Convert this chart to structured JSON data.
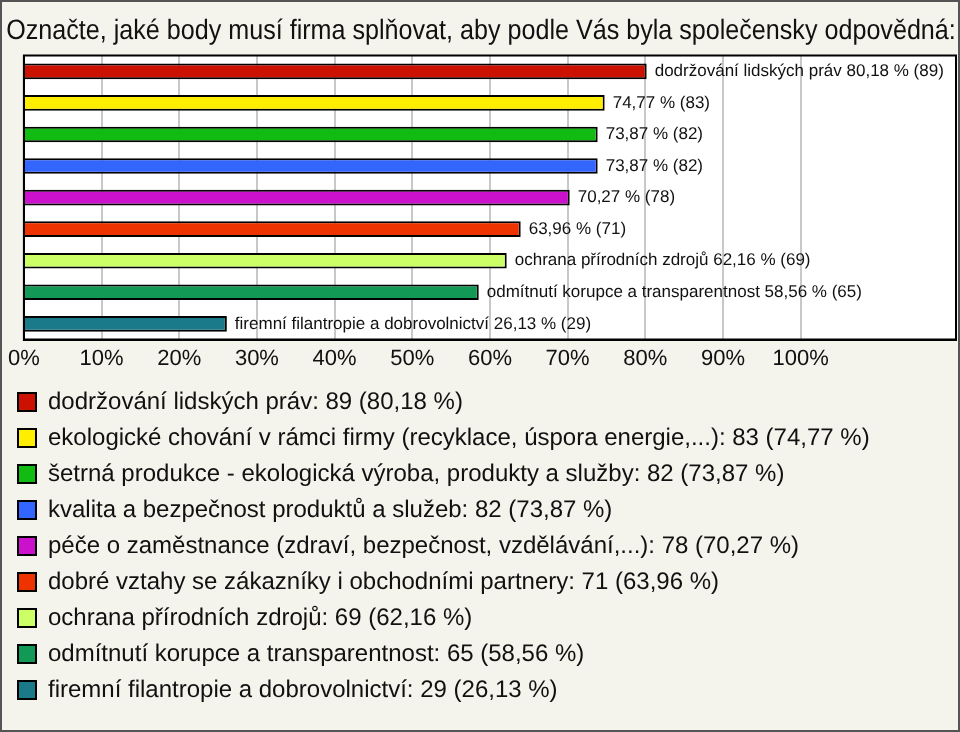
{
  "chart_data": {
    "type": "bar",
    "orientation": "horizontal",
    "title": "Označte, jaké body musí firma splňovat, aby podle Vás byla společensky odpovědná:",
    "categories": [
      null,
      null,
      null,
      null,
      null,
      null,
      null,
      null,
      null
    ],
    "series": [
      {
        "name": "dodržování lidských práv: 89 (80,18 %)",
        "color": "#cc1100",
        "values": [
          80.18,
          null,
          null,
          null,
          null,
          null,
          null,
          null,
          null
        ],
        "value_labels": [
          "dodržování lidských práv 80,18 % (89)",
          null,
          null,
          null,
          null,
          null,
          null,
          null,
          null
        ]
      },
      {
        "name": "ekologické chování v rámci firmy (recyklace, úspora energie,...): 83 (74,77 %)",
        "color": "#ffee00",
        "values": [
          null,
          74.77,
          null,
          null,
          null,
          null,
          null,
          null,
          null
        ],
        "value_labels": [
          null,
          "74,77 % (83)",
          null,
          null,
          null,
          null,
          null,
          null,
          null
        ]
      },
      {
        "name": "šetrná produkce - ekologická výroba, produkty a služby: 82 (73,87 %)",
        "color": "#11bb11",
        "values": [
          null,
          null,
          73.87,
          null,
          null,
          null,
          null,
          null,
          null
        ],
        "value_labels": [
          null,
          null,
          "73,87 % (82)",
          null,
          null,
          null,
          null,
          null,
          null
        ]
      },
      {
        "name": "kvalita a bezpečnost produktů a služeb: 82 (73,87 %)",
        "color": "#3366ff",
        "values": [
          null,
          null,
          null,
          73.87,
          null,
          null,
          null,
          null,
          null
        ],
        "value_labels": [
          null,
          null,
          null,
          "73,87 % (82)",
          null,
          null,
          null,
          null,
          null
        ]
      },
      {
        "name": "péče o zaměstnance (zdraví, bezpečnost, vzdělávání,...): 78 (70,27 %)",
        "color": "#cc11cc",
        "values": [
          null,
          null,
          null,
          null,
          70.27,
          null,
          null,
          null,
          null
        ],
        "value_labels": [
          null,
          null,
          null,
          null,
          "70,27 % (78)",
          null,
          null,
          null,
          null
        ]
      },
      {
        "name": "dobré vztahy se zákazníky i obchodními partnery: 71 (63,96 %)",
        "color": "#ee3300",
        "values": [
          null,
          null,
          null,
          null,
          null,
          63.96,
          null,
          null,
          null
        ],
        "value_labels": [
          null,
          null,
          null,
          null,
          null,
          "63,96 % (71)",
          null,
          null,
          null
        ]
      },
      {
        "name": "ochrana přírodních zdrojů: 69 (62,16 %)",
        "color": "#ccff66",
        "values": [
          null,
          null,
          null,
          null,
          null,
          null,
          62.16,
          null,
          null
        ],
        "value_labels": [
          null,
          null,
          null,
          null,
          null,
          null,
          "ochrana přírodních zdrojů 62,16 % (69)",
          null,
          null
        ]
      },
      {
        "name": "odmítnutí korupce a transparentnost: 65 (58,56 %)",
        "color": "#119955",
        "values": [
          null,
          null,
          null,
          null,
          null,
          null,
          null,
          58.56,
          null
        ],
        "value_labels": [
          null,
          null,
          null,
          null,
          null,
          null,
          null,
          "odmítnutí korupce a transparentnost 58,56 % (65)",
          null
        ]
      },
      {
        "name": "firemní filantropie a dobrovolnictví: 29 (26,13 %)",
        "color": "#1a7a8a",
        "values": [
          null,
          null,
          null,
          null,
          null,
          null,
          null,
          null,
          26.13
        ],
        "value_labels": [
          null,
          null,
          null,
          null,
          null,
          null,
          null,
          null,
          "firemní filantropie a dobrovolnictví 26,13 % (29)"
        ]
      }
    ],
    "xlim": [
      0,
      120
    ],
    "xticks": [
      {
        "value": 0,
        "label": "0%"
      },
      {
        "value": 10,
        "label": "10%"
      },
      {
        "value": 20,
        "label": "20%"
      },
      {
        "value": 30,
        "label": "30%"
      },
      {
        "value": 40,
        "label": "40%"
      },
      {
        "value": 50,
        "label": "50%"
      },
      {
        "value": 60,
        "label": "60%"
      },
      {
        "value": 70,
        "label": "70%"
      },
      {
        "value": 80,
        "label": "80%"
      },
      {
        "value": 90,
        "label": "90%"
      },
      {
        "value": 100,
        "label": "100%"
      }
    ],
    "grid": "x",
    "legend": "bottom",
    "tick_labels": "x"
  }
}
